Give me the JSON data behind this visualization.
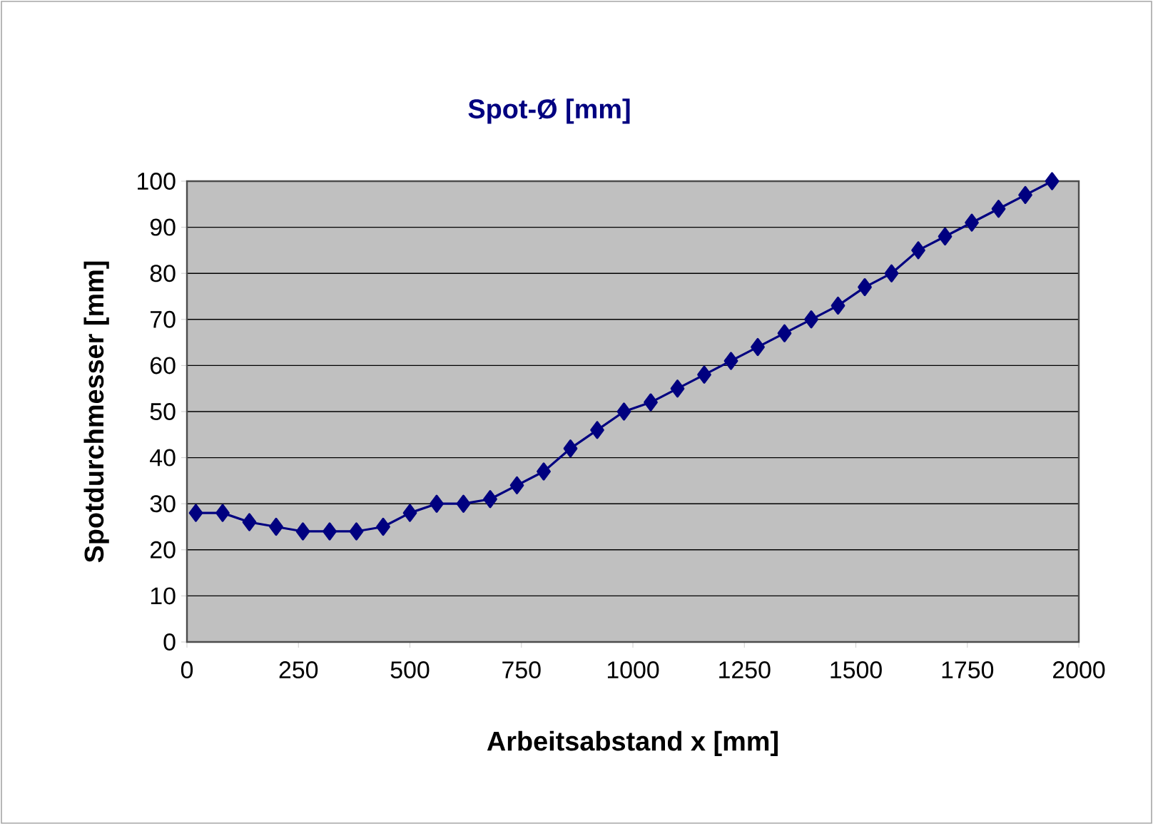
{
  "chart_data": {
    "type": "line",
    "title": "Spot-Ø [mm]",
    "xlabel": "Arbeitsabstand x [mm]",
    "ylabel": "Spotdurchmesser [mm]",
    "x": [
      20,
      80,
      140,
      200,
      260,
      320,
      380,
      440,
      500,
      560,
      620,
      680,
      740,
      800,
      860,
      920,
      980,
      1040,
      1100,
      1160,
      1220,
      1280,
      1340,
      1400,
      1460,
      1520,
      1580,
      1640,
      1700,
      1760,
      1820,
      1880,
      1940
    ],
    "series": [
      {
        "color": "#000080",
        "values": [
          28,
          28,
          26,
          25,
          24,
          24,
          24,
          25,
          28,
          30,
          30,
          31,
          34,
          37,
          42,
          46,
          50,
          52,
          55,
          58,
          61,
          64,
          67,
          70,
          73,
          77,
          80,
          85,
          88,
          91,
          94,
          97,
          100
        ]
      }
    ],
    "xlim": [
      0,
      2000
    ],
    "xticks": [
      0,
      250,
      500,
      750,
      1000,
      1250,
      1500,
      1750,
      2000
    ],
    "ylim": [
      0,
      100
    ],
    "yticks": [
      0,
      10,
      20,
      30,
      40,
      50,
      60,
      70,
      80,
      90,
      100
    ],
    "grid": "y",
    "marker": "diamond",
    "line_style": "solid"
  }
}
